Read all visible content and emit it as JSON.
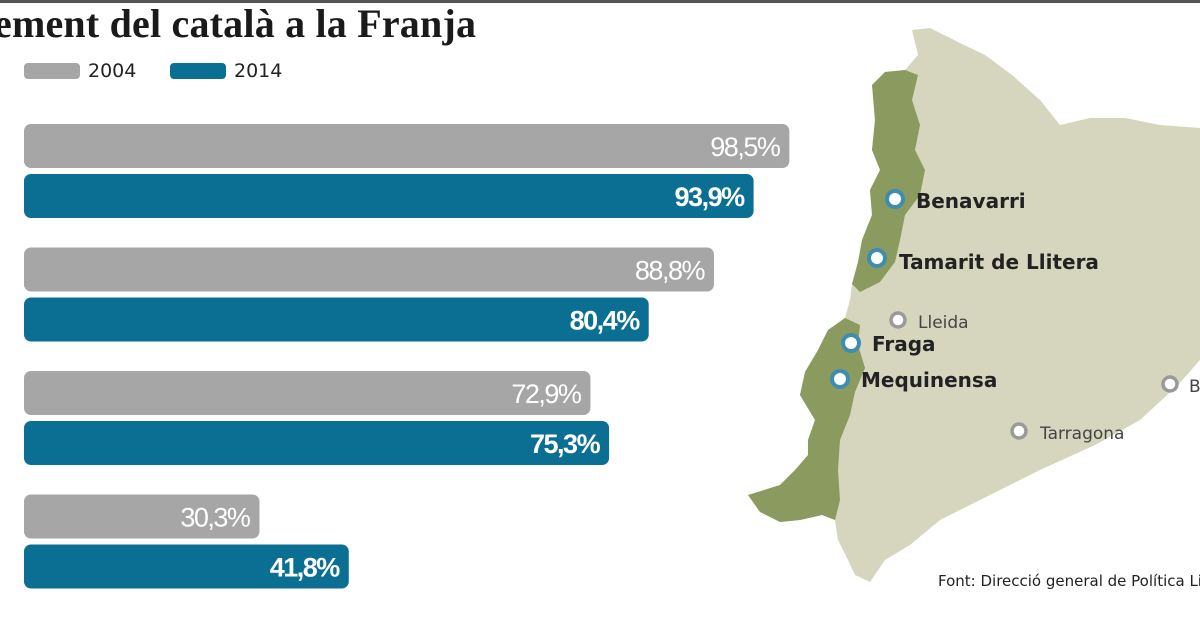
{
  "title": "ement del català a la Franja",
  "legend": [
    {
      "label": "2004",
      "color": "#a6a6a6"
    },
    {
      "label": "2014",
      "color": "#0b6f93"
    }
  ],
  "chart_data": {
    "type": "bar",
    "orientation": "horizontal",
    "categories": [
      "",
      "",
      "",
      ""
    ],
    "series": [
      {
        "name": "2004",
        "color": "#a6a6a6",
        "values": [
          98.5,
          88.8,
          72.9,
          30.3
        ],
        "labels": [
          "98,5%",
          "88,8%",
          "72,9%",
          "30,3%"
        ]
      },
      {
        "name": "2014",
        "color": "#0b6f93",
        "values": [
          93.9,
          80.4,
          75.3,
          41.8
        ],
        "labels": [
          "93,9%",
          "80,4%",
          "75,3%",
          "41,8%"
        ]
      }
    ],
    "xlim": [
      0,
      100
    ],
    "grid": false,
    "legend_position": "top-left"
  },
  "map": {
    "land_color": "#d5d6bd",
    "franja_color": "#8b9a5e",
    "marker_color": "#3e8db0",
    "minor_marker_color": "#9a9a9a",
    "major_cities": [
      "Benavarri",
      "Tamarit de Llitera",
      "Fraga",
      "Mequinensa"
    ],
    "minor_cities": [
      "Lleida",
      "Tarragona",
      "B"
    ]
  },
  "source": "Font: Direcció general de Política Li"
}
